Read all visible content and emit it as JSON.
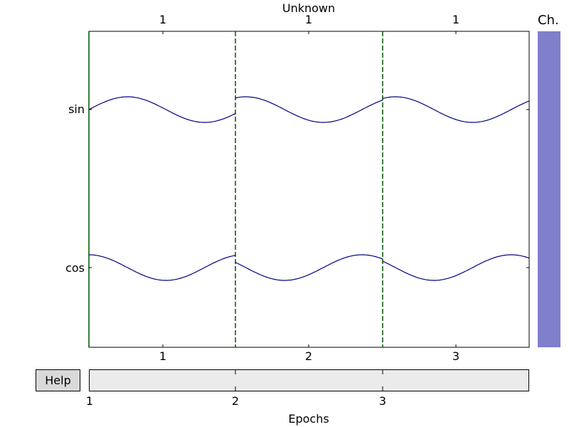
{
  "chart_data": {
    "type": "line",
    "title": "Unknown",
    "xlabel": "Epochs",
    "ylabel": "",
    "channels": [
      "sin",
      "cos"
    ],
    "epochs": [
      1,
      2,
      3
    ],
    "epoch_markers": [
      "1",
      "1",
      "1"
    ],
    "bottom_ticks": [
      "1",
      "2",
      "3"
    ],
    "series": [
      {
        "name": "sin",
        "color": "#000080",
        "values": [
          0.0,
          0.95,
          0.0,
          -0.95,
          0.0,
          0.58,
          -0.58,
          0.95,
          0.0,
          -0.95,
          -0.35,
          0.35,
          0.95,
          0.0,
          -0.95,
          -0.1
        ]
      },
      {
        "name": "cos",
        "color": "#000080",
        "values": [
          1.0,
          0.0,
          -0.95,
          0.0,
          0.95,
          -0.81,
          -0.81,
          0.3,
          0.95,
          0.0,
          -0.95,
          -0.5,
          0.95,
          0.5,
          -0.95,
          0.9
        ]
      }
    ],
    "grid": false
  },
  "vline_color": "#005400",
  "channel_bar": {
    "label": "Ch.",
    "color": "#7f7fcc"
  },
  "help_label": "Help",
  "scroll": {
    "ticks": [
      "1",
      "2",
      "3"
    ]
  }
}
